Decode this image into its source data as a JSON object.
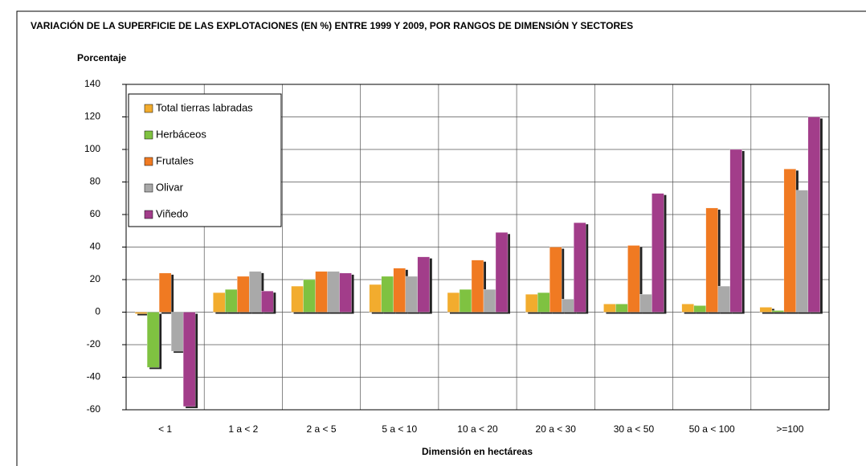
{
  "chart_data": {
    "type": "bar",
    "title": "VARIACIÓN DE LA SUPERFICIE DE LAS EXPLOTACIONES (EN %) ENTRE 1999 Y 2009, POR RANGOS DE DIMENSIÓN Y SECTORES",
    "y_label": "Porcentaje",
    "x_label": "Dimensión en hectáreas",
    "categories": [
      "< 1",
      "1  a < 2",
      "2 a < 5",
      "5 a <  10",
      "10 a < 20",
      "20 a < 30",
      "30 a < 50",
      "50 a < 100",
      ">=100"
    ],
    "series": [
      {
        "name": "Total tierras labradas",
        "color": "#f2ac2e",
        "values": [
          -1,
          12,
          16,
          17,
          12,
          11,
          5,
          5,
          3
        ]
      },
      {
        "name": "Herbáceos",
        "color": "#7fc241",
        "values": [
          -34,
          14,
          20,
          22,
          14,
          12,
          5,
          4,
          1
        ]
      },
      {
        "name": "Frutales",
        "color": "#f07a22",
        "values": [
          24,
          22,
          25,
          27,
          32,
          40,
          41,
          64,
          88
        ]
      },
      {
        "name": "Olivar",
        "color": "#a9a9a9",
        "values": [
          -24,
          25,
          25,
          22,
          14,
          8,
          11,
          16,
          75
        ]
      },
      {
        "name": "Viñedo",
        "color": "#a23d8a",
        "values": [
          -58,
          13,
          24,
          34,
          49,
          55,
          73,
          100,
          120
        ]
      }
    ],
    "ylim": [
      -60,
      140
    ],
    "yticks": [
      -60,
      -40,
      -20,
      0,
      20,
      40,
      60,
      80,
      100,
      120,
      140
    ],
    "grid": true,
    "legend": "upper left"
  }
}
